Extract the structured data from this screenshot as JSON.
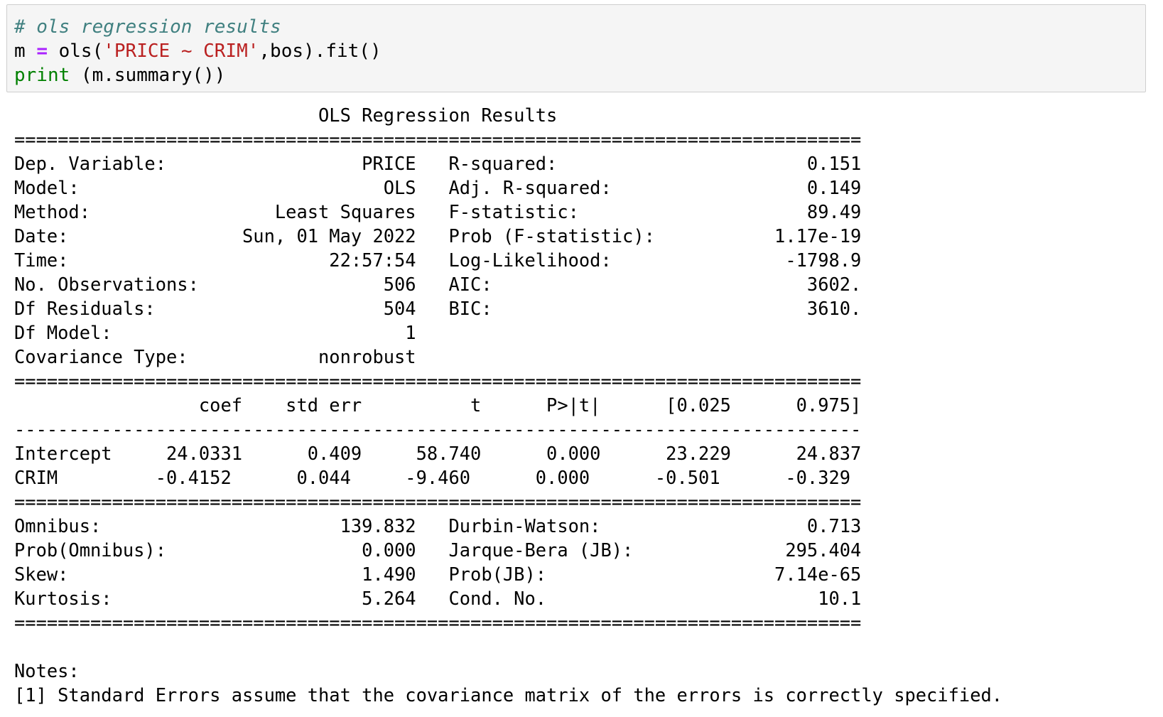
{
  "code_cell": {
    "line1": "# ols regression results",
    "line2": {
      "var": "m ",
      "op": "=",
      "call": " ols(",
      "string": "'PRICE ~ CRIM'",
      "rest": ",bos).fit()"
    },
    "line3": {
      "builtin": "print",
      "rest": " (m.summary())"
    }
  },
  "output": {
    "lines": [
      "                            OLS Regression Results                            ",
      "==============================================================================",
      "Dep. Variable:                  PRICE   R-squared:                       0.151",
      "Model:                            OLS   Adj. R-squared:                  0.149",
      "Method:                 Least Squares   F-statistic:                     89.49",
      "Date:                Sun, 01 May 2022   Prob (F-statistic):           1.17e-19",
      "Time:                        22:57:54   Log-Likelihood:                -1798.9",
      "No. Observations:                 506   AIC:                             3602.",
      "Df Residuals:                     504   BIC:                             3610.",
      "Df Model:                           1                                         ",
      "Covariance Type:            nonrobust                                         ",
      "==============================================================================",
      "                 coef    std err          t      P>|t|      [0.025      0.975]",
      "------------------------------------------------------------------------------",
      "Intercept     24.0331      0.409     58.740      0.000      23.229      24.837",
      "CRIM         -0.4152      0.044     -9.460      0.000      -0.501      -0.329",
      "==============================================================================",
      "Omnibus:                      139.832   Durbin-Watson:                   0.713",
      "Prob(Omnibus):                  0.000   Jarque-Bera (JB):              295.404",
      "Skew:                           1.490   Prob(JB):                     7.14e-65",
      "Kurtosis:                       5.264   Cond. No.                         10.1",
      "==============================================================================",
      "",
      "Notes:",
      "[1] Standard Errors assume that the covariance matrix of the errors is correctly specified."
    ]
  }
}
